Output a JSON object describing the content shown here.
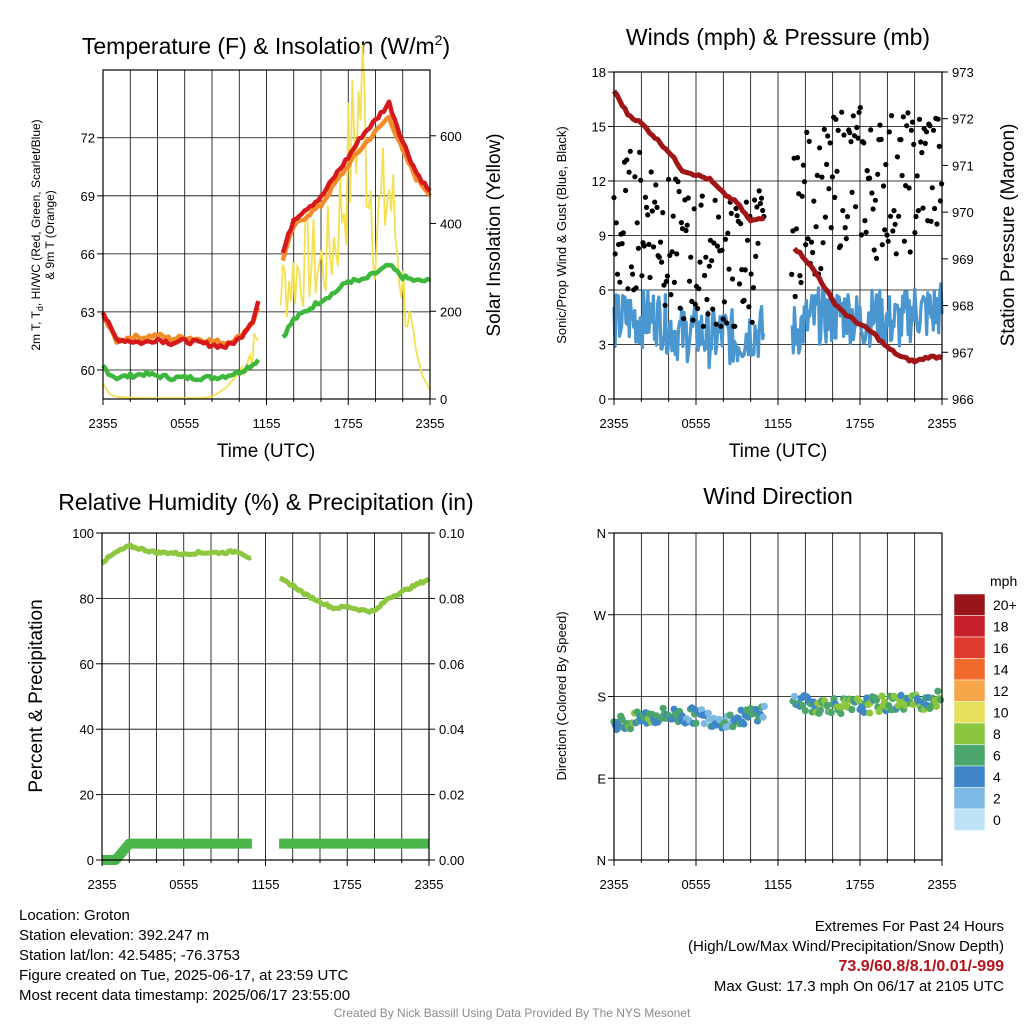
{
  "colors": {
    "temp": "#d7191c",
    "hi_wc": "#c62828",
    "dewpoint": "#3db83d",
    "temp9m": "#f28c28",
    "solar": "#f5e050",
    "wind": "#4a96d0",
    "gust": "#000000",
    "pressure": "#a01515",
    "rh": "#8dc63f",
    "precip": "#4ab54a"
  },
  "speed_scale": {
    "unit": "mph",
    "labels": [
      "20+",
      "18",
      "16",
      "14",
      "12",
      "10",
      "8",
      "6",
      "4",
      "2",
      "0"
    ],
    "colors": [
      "#99151a",
      "#c8202a",
      "#e03a2f",
      "#f06a2c",
      "#f8a64a",
      "#e6e05a",
      "#8cc63f",
      "#4aa66a",
      "#3f86c6",
      "#7db9e3",
      "#bfe3f6"
    ]
  },
  "charts": {
    "temperature": {
      "title": "Temperature (F) & Insolation (W/m",
      "title_sup": "2",
      "title_end": ")",
      "xlabel": "Time (UTC)",
      "ylabel_line1": "2m T, T",
      "ylabel_sub": "d",
      "ylabel_line1_end": ", HI/WC (Red, Green, Scarlet/Blue)",
      "ylabel_line2": "& 9m T (Orange)",
      "y2label": "Solar Insolation (Yellow)",
      "x_ticks": [
        "2355",
        "0555",
        "1155",
        "1755",
        "2355"
      ],
      "y_ticks": [
        "60",
        "63",
        "66",
        "69",
        "72"
      ],
      "y2_ticks": [
        "0",
        "200",
        "400",
        "600"
      ]
    },
    "winds": {
      "title": "Winds (mph) & Pressure (mb)",
      "xlabel": "Time (UTC)",
      "ylabel": "Sonic/Prop Wind & Gust (Blue, Black)",
      "y2label": "Station Pressure (Maroon)",
      "x_ticks": [
        "2355",
        "0555",
        "1155",
        "1755",
        "2355"
      ],
      "y_ticks": [
        "0",
        "3",
        "6",
        "9",
        "12",
        "15",
        "18"
      ],
      "y2_ticks": [
        "966",
        "967",
        "968",
        "969",
        "970",
        "971",
        "972",
        "973"
      ]
    },
    "humidity": {
      "title": "Relative Humidity (%) & Precipitation (in)",
      "ylabel": "Percent & Precipitation",
      "x_ticks": [
        "2355",
        "0555",
        "1155",
        "1755",
        "2355"
      ],
      "y_ticks": [
        "0",
        "20",
        "40",
        "60",
        "80",
        "100"
      ],
      "y2_ticks": [
        "0.00",
        "0.02",
        "0.04",
        "0.06",
        "0.08",
        "0.10"
      ]
    },
    "direction": {
      "title": "Wind Direction",
      "ylabel": "Direction (Colored By Speed)",
      "x_ticks": [
        "2355",
        "0555",
        "1155",
        "1755",
        "2355"
      ],
      "y_ticks": [
        "N",
        "E",
        "S",
        "W",
        "N"
      ]
    }
  },
  "chart_data": [
    {
      "type": "line",
      "title": "Temperature (F) & Insolation (W/m2)",
      "xlabel": "Time (UTC)",
      "x_hours": [
        0,
        0.5,
        1,
        2,
        3,
        4,
        5,
        6,
        7,
        8,
        9,
        10,
        11,
        11.5,
        12,
        13,
        14,
        15,
        16,
        17,
        18,
        19,
        20,
        21,
        22,
        23,
        24
      ],
      "ylim": [
        58.5,
        75.5
      ],
      "y2lim": [
        0,
        750
      ],
      "series": [
        {
          "axis": "left",
          "key": "t2m",
          "values": [
            63.0,
            62.2,
            61.6,
            61.5,
            61.4,
            61.6,
            61.4,
            61.5,
            61.4,
            61.3,
            61.2,
            61.6,
            62.6,
            63.8,
            null,
            65.6,
            67.8,
            68.4,
            68.9,
            70.0,
            71.0,
            72.1,
            72.9,
            73.8,
            71.8,
            70.2,
            69.2
          ]
        },
        {
          "axis": "left",
          "key": "t9m",
          "values": [
            62.9,
            62.1,
            61.5,
            61.7,
            61.7,
            61.8,
            61.6,
            61.7,
            61.6,
            61.5,
            61.4,
            61.7,
            62.5,
            63.4,
            null,
            65.3,
            67.4,
            68.0,
            68.5,
            69.6,
            70.6,
            71.5,
            72.3,
            73.1,
            71.3,
            69.9,
            69.1
          ]
        },
        {
          "axis": "left",
          "key": "dewpoint",
          "values": [
            60.2,
            59.8,
            59.6,
            59.7,
            59.8,
            59.7,
            59.6,
            59.6,
            59.6,
            59.6,
            59.7,
            59.9,
            60.3,
            60.6,
            null,
            61.5,
            62.6,
            63.1,
            63.6,
            64.0,
            64.6,
            64.6,
            65.0,
            65.4,
            64.8,
            64.6,
            64.6
          ]
        },
        {
          "axis": "right",
          "key": "solar",
          "values": [
            35,
            10,
            5,
            3,
            2,
            2,
            2,
            2,
            2,
            5,
            25,
            60,
            110,
            150,
            null,
            250,
            280,
            320,
            300,
            360,
            520,
            700,
            380,
            480,
            260,
            80,
            20
          ]
        }
      ]
    },
    {
      "type": "scatter",
      "title": "Winds (mph) & Pressure (mb)",
      "xlabel": "Time (UTC)",
      "x_hours": [
        0,
        1,
        2,
        3,
        4,
        5,
        6,
        7,
        8,
        9,
        10,
        11,
        12,
        13,
        14,
        15,
        16,
        17,
        18,
        19,
        20,
        21,
        22,
        23,
        24
      ],
      "ylim": [
        0,
        18
      ],
      "y2lim": [
        966,
        973
      ],
      "series": [
        {
          "axis": "left",
          "key": "wind",
          "values": [
            4.2,
            4.5,
            4.4,
            4.6,
            4.0,
            3.5,
            3.8,
            3.3,
            3.6,
            3.2,
            3.8,
            3.6,
            null,
            3.6,
            4.2,
            4.6,
            4.5,
            4.8,
            4.2,
            4.6,
            4.3,
            4.2,
            4.9,
            4.7,
            5.0
          ]
        },
        {
          "axis": "left",
          "key": "gust",
          "values": [
            8.5,
            9.8,
            10.0,
            10.5,
            8.4,
            8.0,
            7.4,
            7.5,
            7.3,
            7.1,
            8.1,
            7.9,
            null,
            9.0,
            11.0,
            10.7,
            11.5,
            12.7,
            12.4,
            11.5,
            12.2,
            11.8,
            12.0,
            13.0,
            11.5
          ]
        },
        {
          "axis": "right",
          "key": "pressure",
          "values": [
            972.6,
            972.1,
            971.9,
            971.6,
            971.3,
            970.9,
            970.8,
            970.7,
            970.4,
            970.2,
            969.8,
            969.9,
            null,
            969.3,
            969.0,
            968.6,
            968.1,
            967.8,
            967.6,
            967.4,
            967.1,
            966.9,
            966.8,
            966.9,
            966.9
          ]
        }
      ]
    },
    {
      "type": "line",
      "title": "Relative Humidity (%) & Precipitation (in)",
      "x_hours": [
        0,
        1,
        2,
        3,
        4,
        5,
        6,
        7,
        8,
        9,
        10,
        11,
        12,
        13,
        14,
        15,
        16,
        17,
        18,
        19,
        20,
        21,
        22,
        23,
        24
      ],
      "ylim": [
        0,
        100
      ],
      "y2lim": [
        0,
        0.1
      ],
      "series": [
        {
          "axis": "left",
          "key": "rh",
          "values": [
            91,
            94,
            96,
            95,
            94,
            94,
            93.5,
            94,
            94,
            94,
            94.5,
            92,
            null,
            86,
            84,
            81,
            79,
            77,
            77.5,
            76.5,
            76,
            80,
            82,
            84,
            86
          ]
        },
        {
          "axis": "right",
          "key": "precip",
          "values": [
            0.0,
            0.0,
            0.005,
            0.005,
            0.005,
            0.005,
            0.005,
            0.005,
            0.005,
            0.005,
            0.005,
            0.005,
            null,
            0.005,
            0.005,
            0.005,
            0.005,
            0.005,
            0.005,
            0.005,
            0.005,
            0.005,
            0.005,
            0.005,
            0.005
          ]
        }
      ]
    },
    {
      "type": "scatter",
      "title": "Wind Direction",
      "ylabel": "Direction (Colored By Speed)",
      "y_range_deg": [
        0,
        360
      ],
      "x_hours": [
        0,
        1,
        2,
        3,
        4,
        5,
        6,
        7,
        8,
        9,
        10,
        11,
        12,
        13,
        14,
        15,
        16,
        17,
        18,
        19,
        20,
        21,
        22,
        23,
        24
      ],
      "direction_deg": [
        152,
        150,
        156,
        158,
        160,
        158,
        159,
        156,
        154,
        155,
        160,
        164,
        null,
        176,
        172,
        170,
        171,
        169,
        170,
        171,
        172,
        174,
        174,
        175,
        178
      ],
      "speed_mph": [
        5,
        6,
        6,
        5,
        5,
        4,
        5,
        3,
        4,
        3,
        5,
        4,
        null,
        4,
        5,
        6,
        6,
        7,
        6,
        6,
        7,
        6,
        6,
        6,
        7
      ]
    }
  ],
  "footer": {
    "location": "Location: Groton",
    "elevation": "Station elevation: 392.247 m",
    "latlon": "Station lat/lon: 42.5485; -76.3753",
    "created": "Figure created on Tue, 2025-06-17, at 23:59 UTC",
    "recent": "Most recent data timestamp: 2025/06/17 23:55:00",
    "extremes_title": "Extremes For Past 24 Hours",
    "extremes_legend": "(High/Low/Max Wind/Precipitation/Snow Depth)",
    "extremes_values": "73.9/60.8/8.1/0.01/-999",
    "max_gust": "Max Gust: 17.3 mph On 06/17 at 2105 UTC",
    "credit": "Created By Nick Bassill Using Data Provided By The NYS Mesonet"
  }
}
